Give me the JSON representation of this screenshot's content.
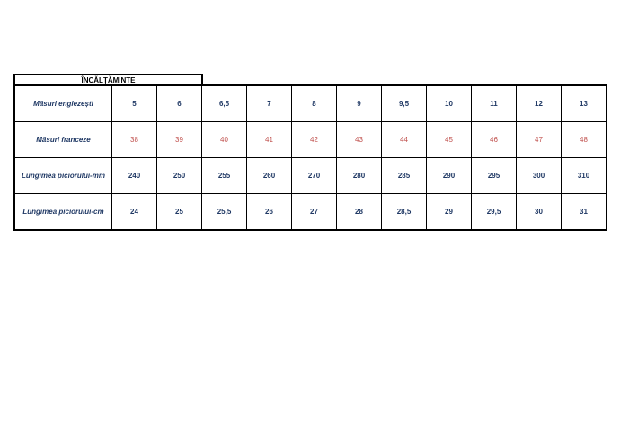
{
  "title": "ÎNCĂLȚĂMINTE",
  "colors": {
    "text": "#1f3864",
    "french": "#c0504d"
  },
  "rows": [
    {
      "label": "Măsuri englezești",
      "values": [
        "5",
        "6",
        "6,5",
        "7",
        "8",
        "9",
        "9,5",
        "10",
        "11",
        "12",
        "13"
      ]
    },
    {
      "label": "Măsuri franceze",
      "values": [
        "38",
        "39",
        "40",
        "41",
        "42",
        "43",
        "44",
        "45",
        "46",
        "47",
        "48"
      ]
    },
    {
      "label": "Lungimea piciorului-mm",
      "values": [
        "240",
        "250",
        "255",
        "260",
        "270",
        "280",
        "285",
        "290",
        "295",
        "300",
        "310"
      ]
    },
    {
      "label": "Lungimea piciorului-cm",
      "values": [
        "24",
        "25",
        "25,5",
        "26",
        "27",
        "28",
        "28,5",
        "29",
        "29,5",
        "30",
        "31"
      ]
    }
  ]
}
